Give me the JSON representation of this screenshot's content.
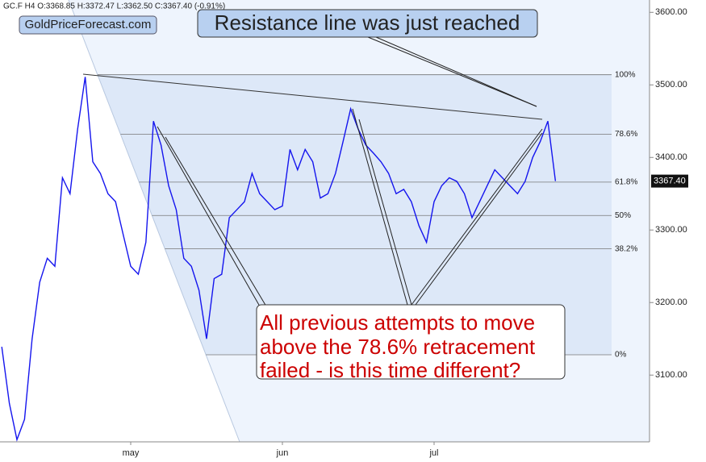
{
  "chart_data": {
    "type": "line",
    "header": "GC.F  H4  O:3368.85  H:3372.47  L:3362.50  C:3367.40  (-0.91%)",
    "watermark": "GoldPriceForecast.com",
    "annotations": {
      "top": "Resistance line was just reached",
      "bottom": [
        "All previous attempts to move",
        "above the 78.6% retracement",
        "failed - is this time different?"
      ]
    },
    "categories": [
      null,
      null,
      null,
      null,
      null,
      null,
      null,
      null,
      null,
      null,
      null,
      null,
      null,
      null,
      null,
      null,
      null,
      "may",
      null,
      null,
      null,
      null,
      null,
      null,
      null,
      null,
      null,
      null,
      null,
      null,
      null,
      null,
      null,
      null,
      null,
      null,
      null,
      "jun",
      null,
      null,
      null,
      null,
      null,
      null,
      null,
      null,
      null,
      null,
      null,
      null,
      null,
      null,
      null,
      null,
      null,
      null,
      null,
      "jul",
      null,
      null,
      null,
      null,
      null,
      null,
      null,
      null,
      null,
      null,
      null,
      null,
      null,
      null,
      null,
      null
    ],
    "series": [
      {
        "name": "GC.F",
        "color": "#1515ee",
        "values": [
          3139,
          3061,
          3011,
          3039,
          3150,
          3228,
          3261,
          3250,
          3372,
          3350,
          3439,
          3511,
          3394,
          3378,
          3350,
          3339,
          3294,
          3250,
          3239,
          3283,
          3450,
          3417,
          3361,
          3328,
          3261,
          3250,
          3217,
          3150,
          3233,
          3239,
          3317,
          3328,
          3339,
          3378,
          3350,
          3339,
          3328,
          3333,
          3411,
          3383,
          3411,
          3394,
          3344,
          3350,
          3378,
          3422,
          3467,
          3439,
          3417,
          3406,
          3394,
          3378,
          3350,
          3356,
          3339,
          3306,
          3283,
          3339,
          3361,
          3372,
          3367,
          3350,
          3317,
          3339,
          3361,
          3383,
          3372,
          3361,
          3350,
          3367,
          3400,
          3422,
          3450,
          3367.4
        ]
      }
    ],
    "levels": [
      {
        "value": 3514,
        "label": "100%"
      },
      {
        "value": 3432,
        "label": "78.6%"
      },
      {
        "value": 3366,
        "label": "61.8%"
      },
      {
        "value": 3320,
        "label": "50%"
      },
      {
        "value": 3274,
        "label": "38.2%"
      },
      {
        "value": 3128,
        "label": "0%"
      }
    ],
    "last_price": {
      "value": 3367.4,
      "label": "3367.40"
    },
    "ylim": [
      3008,
      3617
    ],
    "yticks": [
      {
        "value": 3100,
        "label": "3100.00"
      },
      {
        "value": 3200,
        "label": "3200.00"
      },
      {
        "value": 3300,
        "label": "3300.00"
      },
      {
        "value": 3400,
        "label": "3400.00"
      },
      {
        "value": 3500,
        "label": "3500.00"
      },
      {
        "value": 3600,
        "label": "3600.00"
      }
    ],
    "grid": false
  }
}
